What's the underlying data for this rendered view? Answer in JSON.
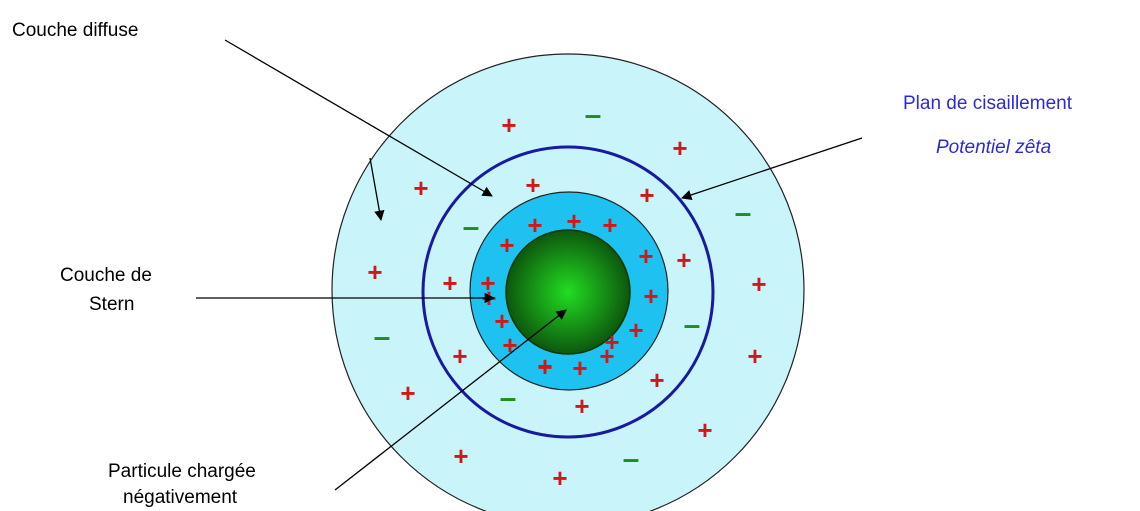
{
  "labels": {
    "diffuse_layer": "Couche diffuse",
    "stern_layer_line1": "Couche de",
    "stern_layer_line2": "Stern",
    "particle_line1": "Particule chargée",
    "particle_line2": "négativement",
    "shear_plane": "Plan de cisaillement",
    "zeta_potential": "Potentiel zêta"
  },
  "symbols": {
    "positive": "+",
    "negative": "–"
  },
  "colors": {
    "diffuse_layer": "#c8f4fa",
    "stern_layer": "#1ec2f0",
    "shear_plane": "#1a1aa0",
    "particle_center": "#22dd22",
    "particle_edge": "#0b4a0b",
    "positive_charge": "#d01818",
    "negative_charge": "#1f8f1f",
    "blue_text": "#2b2bd6"
  }
}
